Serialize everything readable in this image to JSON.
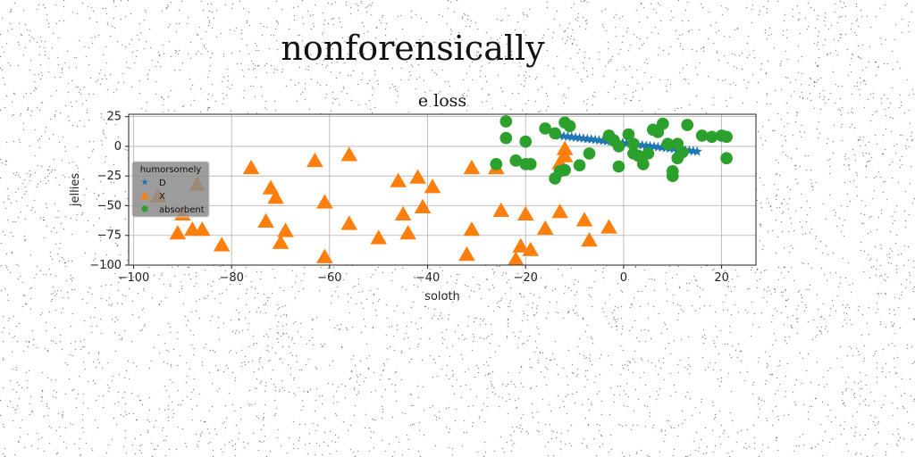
{
  "page": {
    "suptitle": "nonforensically"
  },
  "chart_data": {
    "type": "scatter",
    "title": "e loss",
    "xlabel": "soloth",
    "ylabel": "jellies",
    "xlim": [
      -101,
      27
    ],
    "ylim": [
      -100,
      27
    ],
    "xticks": [
      -100,
      -80,
      -60,
      -40,
      -20,
      0,
      20
    ],
    "yticks": [
      25,
      0,
      -25,
      -50,
      -75,
      -100
    ],
    "grid": true,
    "legend": {
      "title": "humorsomely",
      "placement": "center-left",
      "background": "#8c8c8c"
    },
    "series": [
      {
        "name": "D",
        "marker": "star",
        "color": "#1f77b4",
        "points": [
          [
            -13,
            9
          ],
          [
            -12.2,
            8.5
          ],
          [
            -11.4,
            8.2
          ],
          [
            -10.6,
            7.8
          ],
          [
            -9.8,
            7.4
          ],
          [
            -9,
            7
          ],
          [
            -8.2,
            6.6
          ],
          [
            -7.4,
            6.2
          ],
          [
            -6.6,
            5.9
          ],
          [
            -5.8,
            5.5
          ],
          [
            -5,
            5.1
          ],
          [
            -4.2,
            4.7
          ],
          [
            -3.4,
            4.3
          ],
          [
            -2.6,
            4
          ],
          [
            -1.8,
            3.6
          ],
          [
            -1,
            3.2
          ],
          [
            -0.2,
            2.8
          ],
          [
            0.6,
            2.4
          ],
          [
            1.4,
            2
          ],
          [
            2.2,
            1.7
          ],
          [
            3,
            1.3
          ],
          [
            3.8,
            0.9
          ],
          [
            4.6,
            0.5
          ],
          [
            5.4,
            0.1
          ],
          [
            6.2,
            -0.2
          ],
          [
            7,
            -0.6
          ],
          [
            7.8,
            -1
          ],
          [
            8.6,
            -1.4
          ],
          [
            9.4,
            -1.8
          ],
          [
            10.2,
            -2.1
          ],
          [
            11,
            -2.5
          ],
          [
            11.8,
            -2.9
          ],
          [
            12.6,
            -3.3
          ],
          [
            13.4,
            -3.7
          ],
          [
            14.2,
            -4
          ],
          [
            15,
            -4.4
          ]
        ]
      },
      {
        "name": "X",
        "marker": "triangle",
        "color": "#ff7f0e",
        "points": [
          [
            -95,
            -42
          ],
          [
            -91,
            -73
          ],
          [
            -90,
            -57
          ],
          [
            -88,
            -70
          ],
          [
            -86,
            -70
          ],
          [
            -87,
            -32
          ],
          [
            -82,
            -83
          ],
          [
            -76,
            -18
          ],
          [
            -73,
            -63
          ],
          [
            -72,
            -35
          ],
          [
            -71,
            -43
          ],
          [
            -70,
            -81
          ],
          [
            -69,
            -71
          ],
          [
            -63,
            -12
          ],
          [
            -61,
            -47
          ],
          [
            -61,
            -93
          ],
          [
            -56,
            -7
          ],
          [
            -56,
            -65
          ],
          [
            -50,
            -77
          ],
          [
            -46,
            -29
          ],
          [
            -45,
            -57
          ],
          [
            -44,
            -73
          ],
          [
            -42,
            -26
          ],
          [
            -41,
            -51
          ],
          [
            -39,
            -34
          ],
          [
            -32,
            -91
          ],
          [
            -31,
            -70
          ],
          [
            -31,
            -18
          ],
          [
            -26,
            -18
          ],
          [
            -25,
            -54
          ],
          [
            -22,
            -95
          ],
          [
            -21,
            -84
          ],
          [
            -20,
            -57
          ],
          [
            -19,
            -87
          ],
          [
            -16,
            -69
          ],
          [
            -13,
            -55
          ],
          [
            -13,
            -14
          ],
          [
            -12,
            -2
          ],
          [
            -12,
            -8
          ],
          [
            -8,
            -62
          ],
          [
            -7,
            -79
          ],
          [
            -3,
            -68
          ]
        ]
      },
      {
        "name": "absorbent",
        "marker": "circle",
        "color": "#2ca02c",
        "points": [
          [
            -24,
            21
          ],
          [
            -24,
            7
          ],
          [
            -26,
            -15
          ],
          [
            -22,
            -12
          ],
          [
            -20,
            4
          ],
          [
            -19,
            -15
          ],
          [
            -20,
            -15
          ],
          [
            -16,
            15
          ],
          [
            -14,
            11
          ],
          [
            -14,
            -27
          ],
          [
            -13,
            -21
          ],
          [
            -12,
            -20
          ],
          [
            -12,
            20
          ],
          [
            -11,
            17
          ],
          [
            -9,
            -16
          ],
          [
            -7,
            -6
          ],
          [
            -3,
            9
          ],
          [
            -2,
            5
          ],
          [
            -1,
            0
          ],
          [
            -1,
            -17
          ],
          [
            1,
            10
          ],
          [
            2,
            2
          ],
          [
            2,
            -6
          ],
          [
            3,
            -8
          ],
          [
            4,
            -15
          ],
          [
            5,
            -6
          ],
          [
            6,
            14
          ],
          [
            7,
            12
          ],
          [
            8,
            19
          ],
          [
            9,
            2
          ],
          [
            10,
            -21
          ],
          [
            10,
            -25
          ],
          [
            11,
            -10
          ],
          [
            11,
            2
          ],
          [
            12,
            -5
          ],
          [
            13,
            18
          ],
          [
            16,
            9
          ],
          [
            18,
            8
          ],
          [
            20,
            9
          ],
          [
            21,
            8
          ],
          [
            21,
            -10
          ]
        ]
      }
    ]
  }
}
